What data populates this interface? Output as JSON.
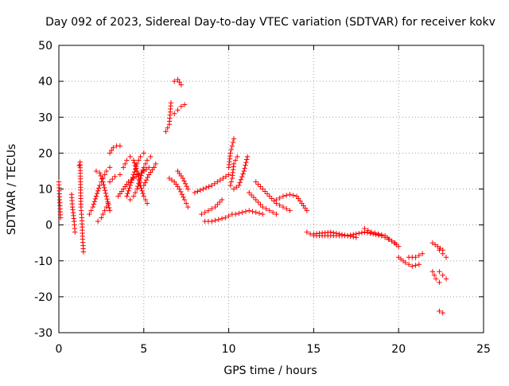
{
  "chart_data": {
    "type": "scatter",
    "title": "Day 092 of 2023, Sidereal Day-to-day VTEC variation (SDTVAR) for receiver kokv",
    "xlabel": "GPS time / hours",
    "ylabel": "SDTVAR / TECUs",
    "xlim": [
      0,
      25
    ],
    "ylim": [
      -30,
      50
    ],
    "xticks": [
      "0",
      "5",
      "10",
      "15",
      "20",
      "25"
    ],
    "yticks": [
      "-30",
      "-20",
      "-10",
      "0",
      "10",
      "20",
      "30",
      "40",
      "50"
    ],
    "grid": true,
    "marker": "plus",
    "color": "#ff0000",
    "series": [
      {
        "name": "p1",
        "x": [
          0.0,
          0.05,
          0.1
        ],
        "y": [
          12,
          7,
          2
        ]
      },
      {
        "name": "p2",
        "x": [
          0.75,
          0.8,
          0.9,
          0.95
        ],
        "y": [
          8.5,
          5,
          1,
          -2
        ]
      },
      {
        "name": "p3",
        "x": [
          1.2,
          1.25,
          1.3,
          1.35,
          1.4,
          1.45
        ],
        "y": [
          16.5,
          17.5,
          5,
          2,
          -4,
          -7.5
        ]
      },
      {
        "name": "p4",
        "x": [
          1.8,
          2.0,
          2.2,
          2.4,
          2.6,
          2.8,
          3.0
        ],
        "y": [
          3,
          5,
          8,
          11,
          13,
          15,
          16
        ]
      },
      {
        "name": "p5",
        "x": [
          2.2,
          2.4,
          2.6,
          2.8,
          3.0
        ],
        "y": [
          15,
          14.5,
          12,
          8,
          4
        ]
      },
      {
        "name": "p6",
        "x": [
          2.3,
          2.5,
          2.7,
          2.9
        ],
        "y": [
          1,
          2,
          4,
          6
        ]
      },
      {
        "name": "p7",
        "x": [
          3.0,
          3.2,
          3.4,
          3.6
        ],
        "y": [
          20,
          21.5,
          22,
          22
        ]
      },
      {
        "name": "p8",
        "x": [
          3.0,
          3.3,
          3.6
        ],
        "y": [
          12,
          13.5,
          14
        ]
      },
      {
        "name": "p9",
        "x": [
          3.5,
          3.8,
          4.1,
          4.4,
          4.7,
          5.0,
          5.3
        ],
        "y": [
          8,
          10,
          12,
          13,
          14,
          15,
          16
        ]
      },
      {
        "name": "p10",
        "x": [
          3.8,
          4.0,
          4.2,
          4.4,
          4.6,
          4.8,
          5.0,
          5.2
        ],
        "y": [
          16,
          18,
          19,
          18,
          15,
          11,
          8,
          6
        ]
      },
      {
        "name": "p11",
        "x": [
          4.0,
          4.2,
          4.4,
          4.6,
          4.8,
          5.0
        ],
        "y": [
          8,
          11,
          14,
          17,
          19,
          20
        ]
      },
      {
        "name": "p12",
        "x": [
          4.2,
          4.4,
          4.6,
          4.8,
          5.0,
          5.2,
          5.4
        ],
        "y": [
          7,
          8,
          10,
          13,
          16,
          18,
          19
        ]
      },
      {
        "name": "p13",
        "x": [
          5.0,
          5.3,
          5.6
        ],
        "y": [
          11,
          14,
          16
        ]
      },
      {
        "name": "p14",
        "x": [
          5.6,
          5.7
        ],
        "y": [
          16,
          17
        ]
      },
      {
        "name": "p15",
        "x": [
          6.3,
          6.5,
          6.6
        ],
        "y": [
          26,
          28,
          34
        ]
      },
      {
        "name": "p16",
        "x": [
          6.8,
          7.0,
          7.2
        ],
        "y": [
          40,
          40.5,
          39
        ]
      },
      {
        "name": "p17",
        "x": [
          6.8,
          7.0,
          7.2,
          7.4
        ],
        "y": [
          31,
          32,
          33,
          33.5
        ]
      },
      {
        "name": "p18",
        "x": [
          6.5,
          6.8,
          7.1,
          7.4,
          7.6
        ],
        "y": [
          13,
          12,
          10,
          7,
          5
        ]
      },
      {
        "name": "p19",
        "x": [
          7.0,
          7.3,
          7.6
        ],
        "y": [
          15,
          13,
          10
        ]
      },
      {
        "name": "p20",
        "x": [
          8.0,
          8.5,
          9.0,
          9.5,
          10.0
        ],
        "y": [
          9,
          10,
          11,
          12.5,
          14
        ]
      },
      {
        "name": "p21",
        "x": [
          8.4,
          8.8,
          9.2,
          9.6
        ],
        "y": [
          3,
          4,
          5,
          7
        ]
      },
      {
        "name": "p22",
        "x": [
          8.6,
          9.0,
          9.4,
          9.8,
          10.2
        ],
        "y": [
          1,
          1,
          1.5,
          2,
          3
        ]
      },
      {
        "name": "p23",
        "x": [
          10.0,
          10.1,
          10.2,
          10.3
        ],
        "y": [
          16,
          20,
          22,
          24
        ]
      },
      {
        "name": "p24",
        "x": [
          10.1,
          10.2,
          10.3,
          10.5
        ],
        "y": [
          11,
          13,
          17,
          19
        ]
      },
      {
        "name": "p25",
        "x": [
          10.3,
          10.6,
          10.9,
          11.1
        ],
        "y": [
          10,
          11,
          15,
          19
        ]
      },
      {
        "name": "p26",
        "x": [
          10.4,
          10.8,
          11.2,
          11.6,
          12.0
        ],
        "y": [
          3,
          3.5,
          4,
          3.5,
          3
        ]
      },
      {
        "name": "p27",
        "x": [
          11.2,
          11.6,
          12.0,
          12.4,
          12.8
        ],
        "y": [
          9,
          7,
          5,
          4,
          3
        ]
      },
      {
        "name": "p28",
        "x": [
          11.6,
          12.0,
          12.4,
          12.8,
          13.2,
          13.6
        ],
        "y": [
          12,
          10,
          8,
          6,
          5,
          4
        ]
      },
      {
        "name": "p29",
        "x": [
          12.8,
          13.2,
          13.6,
          14.0,
          14.3,
          14.6
        ],
        "y": [
          7,
          8,
          8.5,
          8,
          6,
          4
        ]
      },
      {
        "name": "p30",
        "x": [
          14.6,
          15.0,
          15.5,
          16.0,
          16.5,
          17.0,
          17.5
        ],
        "y": [
          -2,
          -3,
          -3,
          -3,
          -3,
          -3,
          -3.5
        ]
      },
      {
        "name": "p31",
        "x": [
          15.0,
          16.0,
          17.0,
          18.0,
          18.5,
          19.0
        ],
        "y": [
          -2.5,
          -2,
          -3,
          -2,
          -2.5,
          -3
        ]
      },
      {
        "name": "p32",
        "x": [
          18.0,
          18.4,
          18.8,
          19.2,
          19.6,
          20.0
        ],
        "y": [
          -1,
          -2,
          -2.5,
          -3,
          -4.5,
          -6
        ]
      },
      {
        "name": "p33",
        "x": [
          19.0,
          19.4,
          19.8
        ],
        "y": [
          -3,
          -4,
          -5
        ]
      },
      {
        "name": "p34",
        "x": [
          20.0,
          20.4,
          20.8,
          21.2
        ],
        "y": [
          -9,
          -10.5,
          -11.5,
          -11
        ]
      },
      {
        "name": "p35",
        "x": [
          20.6,
          21.0,
          21.4
        ],
        "y": [
          -9,
          -9,
          -8
        ]
      },
      {
        "name": "p36",
        "x": [
          22.0,
          22.3,
          22.6
        ],
        "y": [
          -5,
          -6,
          -7
        ]
      },
      {
        "name": "p37",
        "x": [
          22.4,
          22.6,
          22.8
        ],
        "y": [
          -7,
          -8,
          -9
        ]
      },
      {
        "name": "p38",
        "x": [
          22.0,
          22.2,
          22.4
        ],
        "y": [
          -13,
          -15,
          -16
        ]
      },
      {
        "name": "p39",
        "x": [
          22.4,
          22.6,
          22.8
        ],
        "y": [
          -13,
          -14,
          -15
        ]
      },
      {
        "name": "p40",
        "x": [
          22.4,
          22.6
        ],
        "y": [
          -24,
          -24.5
        ]
      }
    ]
  }
}
